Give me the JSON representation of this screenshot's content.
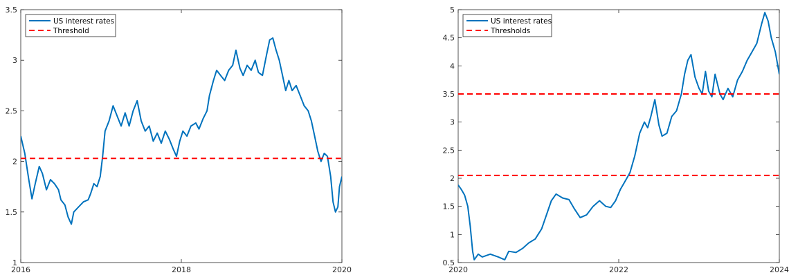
{
  "chart_data": [
    {
      "type": "line",
      "title": "",
      "xlabel": "",
      "ylabel": "",
      "xlim": [
        2016,
        2020
      ],
      "ylim": [
        1,
        3.5
      ],
      "x_ticks": [
        2016,
        2018,
        2020
      ],
      "y_ticks": [
        1,
        1.5,
        2,
        2.5,
        3,
        3.5
      ],
      "grid": false,
      "legend": {
        "location": "top-left",
        "entries": [
          "US interest rates",
          "Threshold"
        ]
      },
      "series": [
        {
          "name": "US interest rates",
          "color": "#0072BD",
          "points": [
            [
              2016.0,
              2.25
            ],
            [
              2016.05,
              2.08
            ],
            [
              2016.1,
              1.82
            ],
            [
              2016.14,
              1.63
            ],
            [
              2016.18,
              1.78
            ],
            [
              2016.23,
              1.95
            ],
            [
              2016.27,
              1.88
            ],
            [
              2016.32,
              1.72
            ],
            [
              2016.37,
              1.82
            ],
            [
              2016.42,
              1.78
            ],
            [
              2016.47,
              1.72
            ],
            [
              2016.5,
              1.62
            ],
            [
              2016.55,
              1.57
            ],
            [
              2016.59,
              1.45
            ],
            [
              2016.63,
              1.38
            ],
            [
              2016.66,
              1.5
            ],
            [
              2016.72,
              1.55
            ],
            [
              2016.78,
              1.6
            ],
            [
              2016.84,
              1.62
            ],
            [
              2016.87,
              1.68
            ],
            [
              2016.91,
              1.78
            ],
            [
              2016.95,
              1.75
            ],
            [
              2016.99,
              1.85
            ],
            [
              2017.02,
              2.05
            ],
            [
              2017.05,
              2.3
            ],
            [
              2017.1,
              2.4
            ],
            [
              2017.15,
              2.55
            ],
            [
              2017.2,
              2.45
            ],
            [
              2017.25,
              2.35
            ],
            [
              2017.3,
              2.48
            ],
            [
              2017.35,
              2.35
            ],
            [
              2017.4,
              2.5
            ],
            [
              2017.45,
              2.6
            ],
            [
              2017.5,
              2.4
            ],
            [
              2017.55,
              2.3
            ],
            [
              2017.6,
              2.35
            ],
            [
              2017.65,
              2.2
            ],
            [
              2017.7,
              2.28
            ],
            [
              2017.75,
              2.18
            ],
            [
              2017.8,
              2.3
            ],
            [
              2017.85,
              2.22
            ],
            [
              2017.9,
              2.12
            ],
            [
              2017.94,
              2.05
            ],
            [
              2017.98,
              2.2
            ],
            [
              2018.02,
              2.3
            ],
            [
              2018.07,
              2.25
            ],
            [
              2018.12,
              2.35
            ],
            [
              2018.18,
              2.38
            ],
            [
              2018.22,
              2.32
            ],
            [
              2018.27,
              2.42
            ],
            [
              2018.32,
              2.5
            ],
            [
              2018.35,
              2.65
            ],
            [
              2018.4,
              2.8
            ],
            [
              2018.44,
              2.9
            ],
            [
              2018.49,
              2.85
            ],
            [
              2018.54,
              2.8
            ],
            [
              2018.59,
              2.9
            ],
            [
              2018.64,
              2.95
            ],
            [
              2018.68,
              3.1
            ],
            [
              2018.73,
              2.92
            ],
            [
              2018.77,
              2.85
            ],
            [
              2018.82,
              2.95
            ],
            [
              2018.87,
              2.9
            ],
            [
              2018.92,
              3.0
            ],
            [
              2018.96,
              2.88
            ],
            [
              2019.01,
              2.85
            ],
            [
              2019.06,
              3.05
            ],
            [
              2019.1,
              3.2
            ],
            [
              2019.14,
              3.22
            ],
            [
              2019.18,
              3.1
            ],
            [
              2019.22,
              3.0
            ],
            [
              2019.26,
              2.85
            ],
            [
              2019.3,
              2.7
            ],
            [
              2019.34,
              2.8
            ],
            [
              2019.38,
              2.7
            ],
            [
              2019.43,
              2.75
            ],
            [
              2019.48,
              2.65
            ],
            [
              2019.53,
              2.55
            ],
            [
              2019.58,
              2.5
            ],
            [
              2019.62,
              2.4
            ],
            [
              2019.66,
              2.25
            ],
            [
              2019.7,
              2.1
            ],
            [
              2019.74,
              2.0
            ],
            [
              2019.78,
              2.08
            ],
            [
              2019.82,
              2.05
            ],
            [
              2019.86,
              1.85
            ],
            [
              2019.89,
              1.6
            ],
            [
              2019.92,
              1.5
            ],
            [
              2019.95,
              1.55
            ],
            [
              2019.97,
              1.75
            ],
            [
              2020.0,
              1.85
            ]
          ]
        },
        {
          "name": "Threshold",
          "color": "#FF0000",
          "dash": true,
          "points": [
            [
              2016,
              2.03
            ],
            [
              2020,
              2.03
            ]
          ]
        }
      ]
    },
    {
      "type": "line",
      "title": "",
      "xlabel": "",
      "ylabel": "",
      "xlim": [
        2020,
        2024
      ],
      "ylim": [
        0.5,
        5
      ],
      "x_ticks": [
        2020,
        2022,
        2024
      ],
      "y_ticks": [
        0.5,
        1,
        1.5,
        2,
        2.5,
        3,
        3.5,
        4,
        4.5,
        5
      ],
      "grid": false,
      "legend": {
        "location": "top-left",
        "entries": [
          "US interest rates",
          "Thresholds"
        ]
      },
      "series": [
        {
          "name": "US interest rates",
          "color": "#0072BD",
          "points": [
            [
              2020.0,
              1.88
            ],
            [
              2020.04,
              1.8
            ],
            [
              2020.08,
              1.7
            ],
            [
              2020.12,
              1.5
            ],
            [
              2020.15,
              1.15
            ],
            [
              2020.18,
              0.7
            ],
            [
              2020.2,
              0.55
            ],
            [
              2020.25,
              0.65
            ],
            [
              2020.3,
              0.6
            ],
            [
              2020.4,
              0.65
            ],
            [
              2020.5,
              0.6
            ],
            [
              2020.58,
              0.55
            ],
            [
              2020.63,
              0.7
            ],
            [
              2020.72,
              0.68
            ],
            [
              2020.8,
              0.75
            ],
            [
              2020.88,
              0.85
            ],
            [
              2020.96,
              0.92
            ],
            [
              2021.04,
              1.1
            ],
            [
              2021.1,
              1.35
            ],
            [
              2021.16,
              1.6
            ],
            [
              2021.22,
              1.72
            ],
            [
              2021.3,
              1.65
            ],
            [
              2021.38,
              1.62
            ],
            [
              2021.45,
              1.45
            ],
            [
              2021.52,
              1.3
            ],
            [
              2021.6,
              1.35
            ],
            [
              2021.68,
              1.5
            ],
            [
              2021.76,
              1.6
            ],
            [
              2021.84,
              1.5
            ],
            [
              2021.9,
              1.48
            ],
            [
              2021.96,
              1.6
            ],
            [
              2022.02,
              1.8
            ],
            [
              2022.08,
              1.95
            ],
            [
              2022.14,
              2.1
            ],
            [
              2022.2,
              2.4
            ],
            [
              2022.26,
              2.8
            ],
            [
              2022.32,
              3.0
            ],
            [
              2022.36,
              2.9
            ],
            [
              2022.4,
              3.1
            ],
            [
              2022.45,
              3.4
            ],
            [
              2022.5,
              2.95
            ],
            [
              2022.54,
              2.75
            ],
            [
              2022.6,
              2.8
            ],
            [
              2022.66,
              3.1
            ],
            [
              2022.72,
              3.2
            ],
            [
              2022.78,
              3.5
            ],
            [
              2022.82,
              3.85
            ],
            [
              2022.86,
              4.1
            ],
            [
              2022.9,
              4.2
            ],
            [
              2022.95,
              3.8
            ],
            [
              2023.0,
              3.6
            ],
            [
              2023.04,
              3.5
            ],
            [
              2023.08,
              3.9
            ],
            [
              2023.12,
              3.55
            ],
            [
              2023.16,
              3.45
            ],
            [
              2023.2,
              3.85
            ],
            [
              2023.26,
              3.5
            ],
            [
              2023.3,
              3.4
            ],
            [
              2023.36,
              3.6
            ],
            [
              2023.42,
              3.45
            ],
            [
              2023.48,
              3.75
            ],
            [
              2023.54,
              3.9
            ],
            [
              2023.6,
              4.1
            ],
            [
              2023.66,
              4.25
            ],
            [
              2023.72,
              4.4
            ],
            [
              2023.78,
              4.75
            ],
            [
              2023.82,
              4.95
            ],
            [
              2023.86,
              4.8
            ],
            [
              2023.9,
              4.5
            ],
            [
              2023.95,
              4.25
            ],
            [
              2024.0,
              3.85
            ]
          ]
        },
        {
          "name": "Thresholds",
          "color": "#FF0000",
          "dash": true,
          "lines": [
            3.5,
            2.05
          ]
        }
      ]
    }
  ]
}
